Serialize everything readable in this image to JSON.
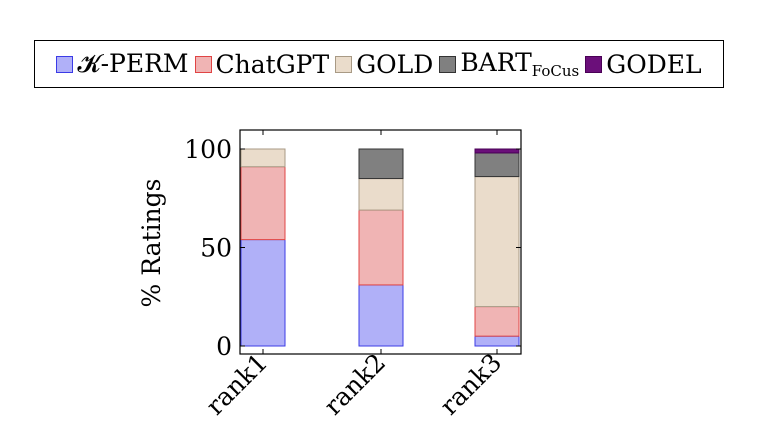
{
  "chart_data": {
    "type": "bar",
    "stacked": true,
    "categories": [
      "rank1",
      "rank2",
      "rank3"
    ],
    "series": [
      {
        "name": "𝓚-PERM",
        "fill": "#b0b0f8",
        "stroke": "#3b3be6",
        "values": [
          54,
          31,
          5
        ]
      },
      {
        "name": "ChatGPT",
        "fill": "#f0b4b4",
        "stroke": "#e04444",
        "values": [
          37,
          38,
          15
        ]
      },
      {
        "name": "GOLD",
        "fill": "#eadccb",
        "stroke": "#a89a85",
        "values": [
          9,
          16,
          66
        ]
      },
      {
        "name": "BART",
        "name_sub": "FoCus",
        "fill": "#808080",
        "stroke": "#333333",
        "values": [
          0,
          15,
          12
        ]
      },
      {
        "name": "GODEL",
        "fill": "#6b0f7a",
        "stroke": "#4a0056",
        "values": [
          0,
          0,
          2
        ]
      }
    ],
    "ylabel": "% Ratings",
    "xlabel": "",
    "yticks": [
      "0",
      "50",
      "100"
    ],
    "ylim": [
      0,
      104
    ],
    "grid": false,
    "legend_position": "top"
  }
}
